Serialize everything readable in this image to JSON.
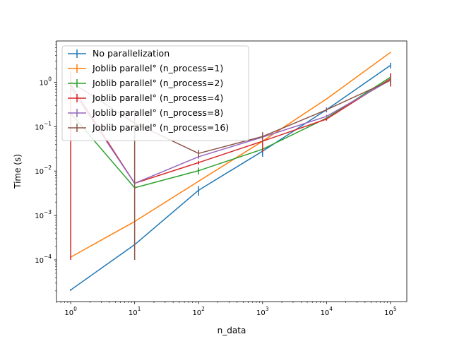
{
  "chart_data": {
    "type": "line",
    "title": "",
    "xlabel": "n_data",
    "ylabel": "Time (s)",
    "xscale": "log",
    "yscale": "log",
    "xlim": [
      0.6,
      180000
    ],
    "ylim": [
      1.15e-05,
      8.5
    ],
    "grid": false,
    "legend_position": "top-left",
    "x": [
      1,
      10,
      100,
      1000,
      10000,
      100000
    ],
    "x_tick_labels": [
      {
        "base": "10",
        "exp": "0"
      },
      {
        "base": "10",
        "exp": "1"
      },
      {
        "base": "10",
        "exp": "2"
      },
      {
        "base": "10",
        "exp": "3"
      },
      {
        "base": "10",
        "exp": "4"
      },
      {
        "base": "10",
        "exp": "5"
      }
    ],
    "y_ticks": [
      0.0001,
      0.001,
      0.01,
      0.1,
      1
    ],
    "y_tick_labels": [
      {
        "base": "10",
        "exp": "−4"
      },
      {
        "base": "10",
        "exp": "−3"
      },
      {
        "base": "10",
        "exp": "−2"
      },
      {
        "base": "10",
        "exp": "−1"
      },
      {
        "base": "10",
        "exp": "0"
      }
    ],
    "series": [
      {
        "name": "No parallelization",
        "color": "#1f77b4",
        "values": [
          2.1e-05,
          0.00022,
          0.0037,
          0.028,
          0.24,
          2.4
        ],
        "errors": [
          1e-06,
          5e-06,
          0.0009,
          0.007,
          0.03,
          0.35
        ]
      },
      {
        "name": "Joblib parallel° (n_process=1)",
        "color": "#ff7f0e",
        "values": [
          0.000115,
          0.00073,
          0.0059,
          0.047,
          0.42,
          4.7
        ],
        "errors": [
          3e-06,
          1e-05,
          0.0002,
          0.002,
          0.01,
          0.1
        ]
      },
      {
        "name": "Joblib parallel° (n_process=2)",
        "color": "#2ca02c",
        "values": [
          0.2,
          0.0042,
          0.0102,
          0.031,
          0.155,
          1.3
        ],
        "errors": [
          0.02,
          0.0002,
          0.0018,
          0.004,
          0.015,
          0.2
        ]
      },
      {
        "name": "Joblib parallel° (n_process=4)",
        "color": "#d62728",
        "values": [
          0.88,
          0.0053,
          0.0155,
          0.047,
          0.148,
          1.2
        ],
        "errors": [
          0.8799,
          0.0001,
          0.0015,
          0.02,
          0.012,
          0.4
        ]
      },
      {
        "name": "Joblib parallel° (n_process=8)",
        "color": "#9467bd",
        "values": [
          0.75,
          0.0053,
          0.021,
          0.058,
          0.17,
          1.12
        ],
        "errors": [
          0.05,
          0.0001,
          0.002,
          0.01,
          0.015,
          0.15
        ]
      },
      {
        "name": "Joblib parallel° (n_process=16)",
        "color": "#8c564b",
        "values": [
          1.02,
          0.12,
          0.025,
          0.06,
          0.24,
          1.1
        ],
        "errors": [
          0.1,
          0.1199,
          0.005,
          0.015,
          0.02,
          0.2
        ]
      }
    ]
  }
}
